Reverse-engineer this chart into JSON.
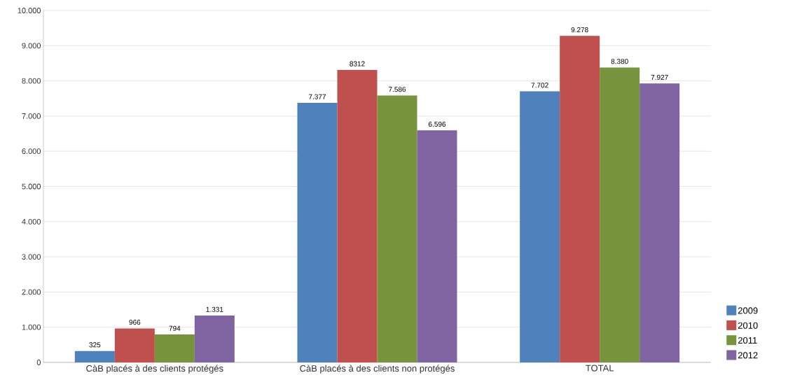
{
  "chart_data": {
    "type": "bar",
    "categories": [
      "CàB placés à des clients protégés",
      "CàB placés à des clients non protégés",
      "TOTAL"
    ],
    "series": [
      {
        "name": "2009",
        "color": "#4f81bd",
        "values": [
          325,
          7377,
          7702
        ],
        "value_labels": [
          "325",
          "7.377",
          "7.702"
        ]
      },
      {
        "name": "2010",
        "color": "#c0504d",
        "values": [
          966,
          8312,
          9278
        ],
        "value_labels": [
          "966",
          "8312",
          "9.278"
        ]
      },
      {
        "name": "2011",
        "color": "#77933c",
        "values": [
          794,
          7586,
          8380
        ],
        "value_labels": [
          "794",
          "7.586",
          "8.380"
        ]
      },
      {
        "name": "2012",
        "color": "#8064a2",
        "values": [
          1331,
          6596,
          7927
        ],
        "value_labels": [
          "1.331",
          "6.596",
          "7.927"
        ]
      }
    ],
    "ylim": [
      0,
      10000
    ],
    "yticks": [
      0,
      {
        "value": 1000,
        "label": "1.000"
      },
      {
        "value": 2000,
        "label": "2.000"
      },
      {
        "value": 3000,
        "label": "3.000"
      },
      {
        "value": 4000,
        "label": "4.000"
      },
      {
        "value": 5000,
        "label": "5.000"
      },
      {
        "value": 6000,
        "label": "6.000"
      },
      {
        "value": 7000,
        "label": "7.000"
      },
      {
        "value": 8000,
        "label": "8.000"
      },
      {
        "value": 9000,
        "label": "9.000"
      },
      {
        "value": 10000,
        "label": "10.000"
      }
    ],
    "grid": "y",
    "legend": "right"
  }
}
